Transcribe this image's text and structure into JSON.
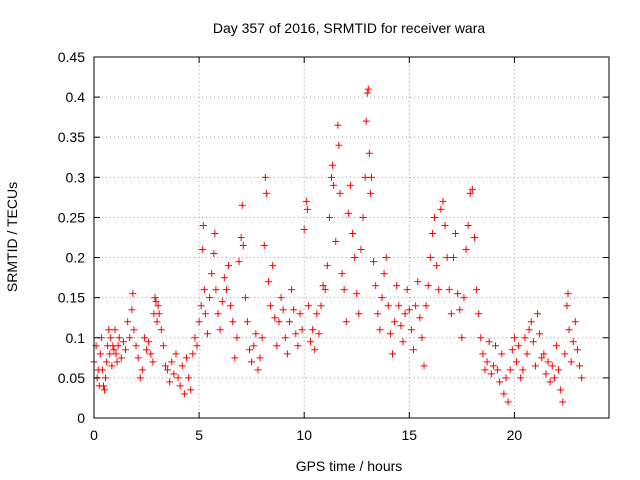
{
  "chart_data": {
    "type": "scatter",
    "title": "Day 357 of 2016, SRMTID for receiver wara",
    "xlabel": "GPS time / hours",
    "ylabel": "SRMTID / TECUs",
    "xlim": [
      0,
      24.5
    ],
    "ylim": [
      0,
      0.45
    ],
    "xticks": [
      0,
      5,
      10,
      15,
      20
    ],
    "xtick_labels": [
      "0",
      "5",
      "10",
      "15",
      "20"
    ],
    "yticks": [
      0,
      0.05,
      0.1,
      0.15,
      0.2,
      0.25,
      0.3,
      0.35,
      0.4,
      0.45
    ],
    "ytick_labels": [
      "0",
      "0.05",
      "0.1",
      "0.15",
      "0.2",
      "0.25",
      "0.3",
      "0.35",
      "0.4",
      "0.45"
    ],
    "grid": true,
    "marker": "+",
    "color": "#ff0000",
    "series": [
      {
        "name": "SRMTID",
        "points": [
          [
            0.0,
            0.07
          ],
          [
            0.1,
            0.09
          ],
          [
            0.15,
            0.05
          ],
          [
            0.2,
            0.06
          ],
          [
            0.25,
            0.04
          ],
          [
            0.3,
            0.08
          ],
          [
            0.35,
            0.1
          ],
          [
            0.4,
            0.06
          ],
          [
            0.45,
            0.04
          ],
          [
            0.5,
            0.035
          ],
          [
            0.55,
            0.05
          ],
          [
            0.6,
            0.07
          ],
          [
            0.65,
            0.09
          ],
          [
            0.7,
            0.11
          ],
          [
            0.75,
            0.08
          ],
          [
            0.8,
            0.1
          ],
          [
            0.85,
            0.065
          ],
          [
            0.9,
            0.09
          ],
          [
            0.95,
            0.085
          ],
          [
            1.0,
            0.11
          ],
          [
            1.05,
            0.08
          ],
          [
            1.1,
            0.07
          ],
          [
            1.15,
            0.09
          ],
          [
            1.2,
            0.1
          ],
          [
            1.3,
            0.075
          ],
          [
            1.4,
            0.095
          ],
          [
            1.5,
            0.085
          ],
          [
            1.6,
            0.12
          ],
          [
            1.7,
            0.1
          ],
          [
            1.8,
            0.135
          ],
          [
            1.85,
            0.155
          ],
          [
            1.9,
            0.11
          ],
          [
            2.0,
            0.09
          ],
          [
            2.1,
            0.075
          ],
          [
            2.2,
            0.05
          ],
          [
            2.3,
            0.06
          ],
          [
            2.4,
            0.1
          ],
          [
            2.5,
            0.085
          ],
          [
            2.6,
            0.095
          ],
          [
            2.7,
            0.08
          ],
          [
            2.8,
            0.07
          ],
          [
            2.85,
            0.13
          ],
          [
            2.9,
            0.15
          ],
          [
            2.95,
            0.145
          ],
          [
            3.0,
            0.12
          ],
          [
            3.05,
            0.14
          ],
          [
            3.1,
            0.13
          ],
          [
            3.2,
            0.11
          ],
          [
            3.3,
            0.09
          ],
          [
            3.4,
            0.065
          ],
          [
            3.5,
            0.06
          ],
          [
            3.6,
            0.045
          ],
          [
            3.7,
            0.07
          ],
          [
            3.8,
            0.055
          ],
          [
            3.9,
            0.08
          ],
          [
            4.0,
            0.05
          ],
          [
            4.1,
            0.04
          ],
          [
            4.2,
            0.065
          ],
          [
            4.3,
            0.03
          ],
          [
            4.4,
            0.075
          ],
          [
            4.5,
            0.05
          ],
          [
            4.6,
            0.035
          ],
          [
            4.7,
            0.08
          ],
          [
            4.8,
            0.1
          ],
          [
            4.9,
            0.09
          ],
          [
            5.0,
            0.12
          ],
          [
            5.1,
            0.14
          ],
          [
            5.15,
            0.21
          ],
          [
            5.2,
            0.24
          ],
          [
            5.25,
            0.16
          ],
          [
            5.3,
            0.13
          ],
          [
            5.4,
            0.105
          ],
          [
            5.5,
            0.15
          ],
          [
            5.6,
            0.18
          ],
          [
            5.7,
            0.205
          ],
          [
            5.75,
            0.23
          ],
          [
            5.8,
            0.16
          ],
          [
            5.9,
            0.13
          ],
          [
            6.0,
            0.11
          ],
          [
            6.1,
            0.145
          ],
          [
            6.2,
            0.175
          ],
          [
            6.3,
            0.16
          ],
          [
            6.4,
            0.19
          ],
          [
            6.5,
            0.14
          ],
          [
            6.6,
            0.12
          ],
          [
            6.7,
            0.075
          ],
          [
            6.8,
            0.1
          ],
          [
            6.9,
            0.195
          ],
          [
            7.0,
            0.225
          ],
          [
            7.05,
            0.265
          ],
          [
            7.1,
            0.215
          ],
          [
            7.2,
            0.15
          ],
          [
            7.3,
            0.12
          ],
          [
            7.4,
            0.085
          ],
          [
            7.5,
            0.07
          ],
          [
            7.6,
            0.09
          ],
          [
            7.7,
            0.105
          ],
          [
            7.8,
            0.06
          ],
          [
            7.9,
            0.075
          ],
          [
            8.0,
            0.1
          ],
          [
            8.1,
            0.215
          ],
          [
            8.15,
            0.3
          ],
          [
            8.2,
            0.28
          ],
          [
            8.3,
            0.17
          ],
          [
            8.4,
            0.14
          ],
          [
            8.5,
            0.19
          ],
          [
            8.6,
            0.125
          ],
          [
            8.7,
            0.09
          ],
          [
            8.8,
            0.12
          ],
          [
            8.9,
            0.15
          ],
          [
            9.0,
            0.135
          ],
          [
            9.1,
            0.1
          ],
          [
            9.2,
            0.08
          ],
          [
            9.3,
            0.12
          ],
          [
            9.4,
            0.16
          ],
          [
            9.5,
            0.135
          ],
          [
            9.6,
            0.105
          ],
          [
            9.7,
            0.09
          ],
          [
            9.8,
            0.13
          ],
          [
            9.9,
            0.11
          ],
          [
            10.0,
            0.235
          ],
          [
            10.1,
            0.27
          ],
          [
            10.15,
            0.26
          ],
          [
            10.2,
            0.14
          ],
          [
            10.3,
            0.095
          ],
          [
            10.4,
            0.11
          ],
          [
            10.5,
            0.085
          ],
          [
            10.6,
            0.13
          ],
          [
            10.7,
            0.105
          ],
          [
            10.8,
            0.14
          ],
          [
            10.9,
            0.165
          ],
          [
            11.0,
            0.16
          ],
          [
            11.1,
            0.19
          ],
          [
            11.2,
            0.25
          ],
          [
            11.3,
            0.3
          ],
          [
            11.35,
            0.315
          ],
          [
            11.4,
            0.29
          ],
          [
            11.5,
            0.22
          ],
          [
            11.6,
            0.365
          ],
          [
            11.65,
            0.34
          ],
          [
            11.7,
            0.28
          ],
          [
            11.8,
            0.18
          ],
          [
            11.9,
            0.16
          ],
          [
            12.0,
            0.12
          ],
          [
            12.1,
            0.255
          ],
          [
            12.2,
            0.29
          ],
          [
            12.3,
            0.23
          ],
          [
            12.4,
            0.2
          ],
          [
            12.5,
            0.155
          ],
          [
            12.6,
            0.13
          ],
          [
            12.7,
            0.21
          ],
          [
            12.8,
            0.25
          ],
          [
            12.9,
            0.3
          ],
          [
            12.95,
            0.37
          ],
          [
            13.0,
            0.405
          ],
          [
            13.05,
            0.41
          ],
          [
            13.1,
            0.33
          ],
          [
            13.15,
            0.28
          ],
          [
            13.2,
            0.3
          ],
          [
            13.3,
            0.195
          ],
          [
            13.4,
            0.165
          ],
          [
            13.5,
            0.13
          ],
          [
            13.6,
            0.11
          ],
          [
            13.7,
            0.15
          ],
          [
            13.8,
            0.18
          ],
          [
            13.9,
            0.2
          ],
          [
            14.0,
            0.14
          ],
          [
            14.1,
            0.105
          ],
          [
            14.2,
            0.08
          ],
          [
            14.3,
            0.12
          ],
          [
            14.4,
            0.165
          ],
          [
            14.5,
            0.14
          ],
          [
            14.6,
            0.115
          ],
          [
            14.7,
            0.095
          ],
          [
            14.8,
            0.13
          ],
          [
            14.9,
            0.16
          ],
          [
            15.0,
            0.135
          ],
          [
            15.1,
            0.11
          ],
          [
            15.2,
            0.085
          ],
          [
            15.3,
            0.14
          ],
          [
            15.4,
            0.17
          ],
          [
            15.5,
            0.125
          ],
          [
            15.6,
            0.1
          ],
          [
            15.7,
            0.065
          ],
          [
            15.8,
            0.14
          ],
          [
            15.9,
            0.165
          ],
          [
            16.0,
            0.2
          ],
          [
            16.1,
            0.23
          ],
          [
            16.2,
            0.25
          ],
          [
            16.3,
            0.19
          ],
          [
            16.4,
            0.16
          ],
          [
            16.5,
            0.26
          ],
          [
            16.6,
            0.27
          ],
          [
            16.7,
            0.24
          ],
          [
            16.8,
            0.2
          ],
          [
            16.9,
            0.16
          ],
          [
            17.0,
            0.13
          ],
          [
            17.1,
            0.2
          ],
          [
            17.2,
            0.23
          ],
          [
            17.3,
            0.155
          ],
          [
            17.4,
            0.135
          ],
          [
            17.5,
            0.1
          ],
          [
            17.6,
            0.15
          ],
          [
            17.7,
            0.21
          ],
          [
            17.8,
            0.24
          ],
          [
            17.9,
            0.28
          ],
          [
            18.0,
            0.285
          ],
          [
            18.1,
            0.225
          ],
          [
            18.2,
            0.16
          ],
          [
            18.3,
            0.13
          ],
          [
            18.4,
            0.1
          ],
          [
            18.5,
            0.08
          ],
          [
            18.6,
            0.06
          ],
          [
            18.7,
            0.07
          ],
          [
            18.8,
            0.095
          ],
          [
            18.9,
            0.055
          ],
          [
            19.0,
            0.065
          ],
          [
            19.1,
            0.09
          ],
          [
            19.2,
            0.06
          ],
          [
            19.3,
            0.045
          ],
          [
            19.4,
            0.08
          ],
          [
            19.5,
            0.03
          ],
          [
            19.6,
            0.05
          ],
          [
            19.7,
            0.02
          ],
          [
            19.8,
            0.06
          ],
          [
            19.9,
            0.085
          ],
          [
            20.0,
            0.1
          ],
          [
            20.1,
            0.07
          ],
          [
            20.2,
            0.09
          ],
          [
            20.3,
            0.05
          ],
          [
            20.4,
            0.06
          ],
          [
            20.5,
            0.1
          ],
          [
            20.6,
            0.08
          ],
          [
            20.7,
            0.11
          ],
          [
            20.8,
            0.12
          ],
          [
            20.9,
            0.095
          ],
          [
            21.0,
            0.065
          ],
          [
            21.1,
            0.13
          ],
          [
            21.2,
            0.105
          ],
          [
            21.3,
            0.075
          ],
          [
            21.4,
            0.08
          ],
          [
            21.5,
            0.055
          ],
          [
            21.6,
            0.07
          ],
          [
            21.7,
            0.045
          ],
          [
            21.8,
            0.065
          ],
          [
            21.9,
            0.05
          ],
          [
            22.0,
            0.09
          ],
          [
            22.1,
            0.06
          ],
          [
            22.2,
            0.035
          ],
          [
            22.3,
            0.02
          ],
          [
            22.4,
            0.08
          ],
          [
            22.5,
            0.14
          ],
          [
            22.55,
            0.155
          ],
          [
            22.6,
            0.11
          ],
          [
            22.7,
            0.07
          ],
          [
            22.8,
            0.095
          ],
          [
            22.9,
            0.12
          ],
          [
            23.0,
            0.085
          ],
          [
            23.1,
            0.065
          ],
          [
            23.2,
            0.05
          ]
        ]
      }
    ]
  }
}
